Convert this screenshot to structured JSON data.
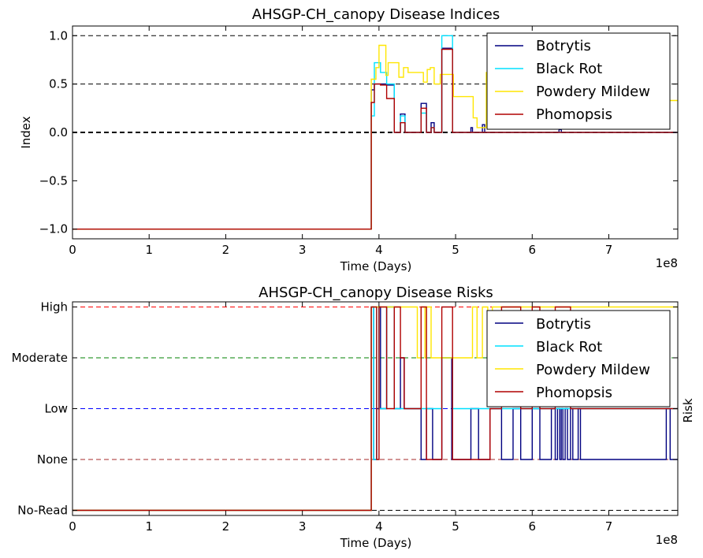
{
  "chart_data": [
    {
      "type": "line",
      "title": "AHSGP-CH_canopy Disease Indices",
      "xlabel": "Time (Days)",
      "ylabel": "Index",
      "x_scale_label": "1e8",
      "xlim": [
        0,
        7.9
      ],
      "ylim": [
        -1.1,
        1.1
      ],
      "x_ticks": [
        "0",
        "1",
        "2",
        "3",
        "4",
        "5",
        "6",
        "7"
      ],
      "y_ticks": [
        "−1.0",
        "−0.5",
        "0.0",
        "0.5",
        "1.0"
      ],
      "reference_lines": [
        {
          "y": 1.0,
          "color": "#000000"
        },
        {
          "y": 0.5,
          "color": "#000000"
        },
        {
          "y": 0.0,
          "color": "#000000"
        }
      ],
      "legend_position": "upper-right",
      "series": [
        {
          "name": "Botrytis",
          "color": "#000080",
          "x": [
            0,
            3.9,
            3.9,
            3.94,
            3.94,
            4.02,
            4.02,
            4.1,
            4.1,
            4.2,
            4.2,
            4.28,
            4.28,
            4.34,
            4.34,
            4.55,
            4.55,
            4.62,
            4.62,
            4.68,
            4.68,
            4.72,
            4.72,
            4.82,
            4.82,
            4.96,
            4.96,
            5.2,
            5.2,
            5.22,
            5.22,
            5.35,
            5.35,
            5.38,
            5.38,
            6.35,
            6.35,
            6.38,
            6.38,
            7.9
          ],
          "y": [
            -1,
            -1,
            0.44,
            0.44,
            0.5,
            0.5,
            0.5,
            0.5,
            0.49,
            0.49,
            0.0,
            0.0,
            0.19,
            0.19,
            0.0,
            0.0,
            0.3,
            0.3,
            0.0,
            0.0,
            0.1,
            0.1,
            0.0,
            0.0,
            0.87,
            0.87,
            0.0,
            0.0,
            0.05,
            0.05,
            0.0,
            0.0,
            0.08,
            0.08,
            0.0,
            0.0,
            0.03,
            0.03,
            0.0,
            0.0
          ]
        },
        {
          "name": "Black Rot",
          "color": "#00e0ff",
          "x": [
            0,
            3.9,
            3.9,
            3.94,
            3.94,
            4.02,
            4.02,
            4.1,
            4.1,
            4.2,
            4.2,
            4.28,
            4.28,
            4.34,
            4.34,
            4.55,
            4.55,
            4.62,
            4.62,
            4.68,
            4.68,
            4.72,
            4.72,
            4.82,
            4.82,
            4.96,
            4.96,
            7.9
          ],
          "y": [
            -1,
            -1,
            0.17,
            0.17,
            0.72,
            0.72,
            0.62,
            0.62,
            0.5,
            0.5,
            0.0,
            0.0,
            0.17,
            0.17,
            0.0,
            0.0,
            0.2,
            0.2,
            0.0,
            0.0,
            0.05,
            0.05,
            0.0,
            0.0,
            1.0,
            1.0,
            0.0,
            0.0
          ]
        },
        {
          "name": "Powdery Mildew",
          "color": "#ffe600",
          "x": [
            0,
            3.9,
            3.9,
            3.96,
            3.96,
            4.0,
            4.0,
            4.09,
            4.09,
            4.12,
            4.12,
            4.2,
            4.2,
            4.26,
            4.26,
            4.32,
            4.32,
            4.38,
            4.38,
            4.58,
            4.58,
            4.63,
            4.63,
            4.67,
            4.67,
            4.72,
            4.72,
            4.8,
            4.8,
            4.97,
            4.97,
            5.23,
            5.23,
            5.28,
            5.28,
            5.4,
            5.4,
            5.43,
            5.43,
            7.9
          ],
          "y": [
            -1,
            -1,
            0.55,
            0.55,
            0.67,
            0.67,
            0.9,
            0.9,
            0.59,
            0.59,
            0.72,
            0.72,
            0.72,
            0.72,
            0.57,
            0.57,
            0.67,
            0.67,
            0.62,
            0.62,
            0.52,
            0.52,
            0.65,
            0.65,
            0.67,
            0.67,
            0.5,
            0.5,
            0.6,
            0.6,
            0.37,
            0.37,
            0.15,
            0.15,
            0.05,
            0.05,
            0.62,
            0.62,
            0.33,
            0.33
          ]
        },
        {
          "name": "Phomopsis",
          "color": "#b00000",
          "x": [
            0,
            3.9,
            3.9,
            3.94,
            3.94,
            4.02,
            4.02,
            4.1,
            4.1,
            4.2,
            4.2,
            4.28,
            4.28,
            4.34,
            4.34,
            4.55,
            4.55,
            4.62,
            4.62,
            4.68,
            4.68,
            4.72,
            4.72,
            4.82,
            4.82,
            4.96,
            4.96,
            7.9
          ],
          "y": [
            -1,
            -1,
            0.31,
            0.31,
            0.5,
            0.5,
            0.49,
            0.49,
            0.35,
            0.35,
            0.0,
            0.0,
            0.1,
            0.1,
            0.0,
            0.0,
            0.25,
            0.25,
            0.0,
            0.0,
            0.05,
            0.05,
            0.0,
            0.0,
            0.86,
            0.86,
            0.0,
            0.0
          ]
        }
      ]
    },
    {
      "type": "line",
      "title": "AHSGP-CH_canopy Disease Risks",
      "xlabel": "Time (Days)",
      "ylabel": "Risk",
      "x_scale_label": "1e8",
      "xlim": [
        0,
        7.9
      ],
      "ylim": [
        -0.1,
        4.1
      ],
      "x_ticks": [
        "0",
        "1",
        "2",
        "3",
        "4",
        "5",
        "6",
        "7"
      ],
      "y_ticks": [
        "No-Read",
        "None",
        "Low",
        "Moderate",
        "High"
      ],
      "reference_lines": [
        {
          "y": 4,
          "color": "#ff0000"
        },
        {
          "y": 3,
          "color": "#008000"
        },
        {
          "y": 2,
          "color": "#0000ff"
        },
        {
          "y": 1,
          "color": "#a52a2a"
        },
        {
          "y": 0,
          "color": "#000000"
        }
      ],
      "legend_position": "upper-right",
      "series": [
        {
          "name": "Botrytis",
          "color": "#000080",
          "x": [
            0,
            3.9,
            3.9,
            3.93,
            3.93,
            3.97,
            3.97,
            4.0,
            4.0,
            4.02,
            4.02,
            4.1,
            4.1,
            4.2,
            4.2,
            4.28,
            4.28,
            4.33,
            4.33,
            4.55,
            4.55,
            4.62,
            4.62,
            4.7,
            4.7,
            4.82,
            4.82,
            4.95,
            4.95,
            5.2,
            5.2,
            5.3,
            5.3,
            5.45,
            5.45,
            5.6,
            5.6,
            5.75,
            5.75,
            5.85,
            5.85,
            6.0,
            6.0,
            6.1,
            6.1,
            6.25,
            6.25,
            6.3,
            6.3,
            6.33,
            6.33,
            6.36,
            6.36,
            6.38,
            6.38,
            6.4,
            6.4,
            6.43,
            6.43,
            6.46,
            6.46,
            6.5,
            6.5,
            6.53,
            6.53,
            6.6,
            6.6,
            6.63,
            6.63,
            7.75,
            7.75,
            7.8,
            7.8,
            7.9
          ],
          "y": [
            0,
            0,
            4,
            4,
            1,
            1,
            2,
            2,
            4,
            4,
            2,
            2,
            4,
            4,
            2,
            2,
            3,
            3,
            2,
            2,
            1,
            1,
            2,
            2,
            1,
            1,
            3,
            3,
            1,
            1,
            2,
            2,
            1,
            1,
            2,
            2,
            1,
            1,
            2,
            2,
            1,
            1,
            2,
            2,
            1,
            1,
            2,
            2,
            1,
            1,
            2,
            2,
            1,
            1,
            2,
            2,
            1,
            1,
            2,
            2,
            1,
            1,
            2,
            2,
            1,
            1,
            2,
            2,
            1,
            1,
            2,
            2,
            1,
            1
          ]
        },
        {
          "name": "Black Rot",
          "color": "#00e0ff",
          "x": [
            0,
            3.9,
            3.9,
            3.93,
            3.93,
            3.97,
            3.97,
            4.0,
            4.0,
            4.1,
            4.1,
            4.2,
            4.2,
            4.82,
            4.82,
            4.96,
            4.96,
            7.9
          ],
          "y": [
            0,
            0,
            4,
            4,
            1,
            1,
            4,
            4,
            2,
            2,
            4,
            4,
            2,
            2,
            3,
            3,
            2,
            2
          ]
        },
        {
          "name": "Powdery Mildew",
          "color": "#ffe600",
          "x": [
            0,
            3.9,
            3.9,
            4.5,
            4.5,
            4.55,
            4.55,
            4.6,
            4.6,
            4.62,
            4.62,
            4.68,
            4.68,
            5.22,
            5.22,
            5.28,
            5.28,
            5.35,
            5.35,
            5.42,
            5.42,
            5.48,
            5.48,
            5.55,
            5.55,
            7.9
          ],
          "y": [
            0,
            0,
            4,
            4,
            3,
            3,
            4,
            4,
            3,
            3,
            4,
            4,
            3,
            3,
            4,
            4,
            3,
            3,
            4,
            4,
            3,
            3,
            4,
            4,
            4,
            4
          ]
        },
        {
          "name": "Phomopsis",
          "color": "#b00000",
          "x": [
            0,
            3.9,
            3.9,
            3.97,
            3.97,
            4.0,
            4.0,
            4.1,
            4.1,
            4.2,
            4.2,
            4.28,
            4.28,
            4.33,
            4.33,
            4.55,
            4.55,
            4.62,
            4.62,
            4.82,
            4.82,
            4.96,
            4.96,
            5.45,
            5.45,
            5.6,
            5.6,
            5.85,
            5.85,
            6.0,
            6.0,
            6.1,
            6.1,
            6.3,
            6.3,
            6.5,
            6.5,
            6.6,
            6.6,
            7.9
          ],
          "y": [
            0,
            0,
            4,
            4,
            1,
            1,
            4,
            4,
            2,
            2,
            4,
            4,
            3,
            3,
            2,
            2,
            4,
            4,
            1,
            1,
            4,
            4,
            1,
            1,
            2,
            2,
            4,
            4,
            2,
            2,
            4,
            4,
            2,
            2,
            4,
            4,
            2,
            2,
            2,
            2
          ]
        }
      ]
    }
  ]
}
